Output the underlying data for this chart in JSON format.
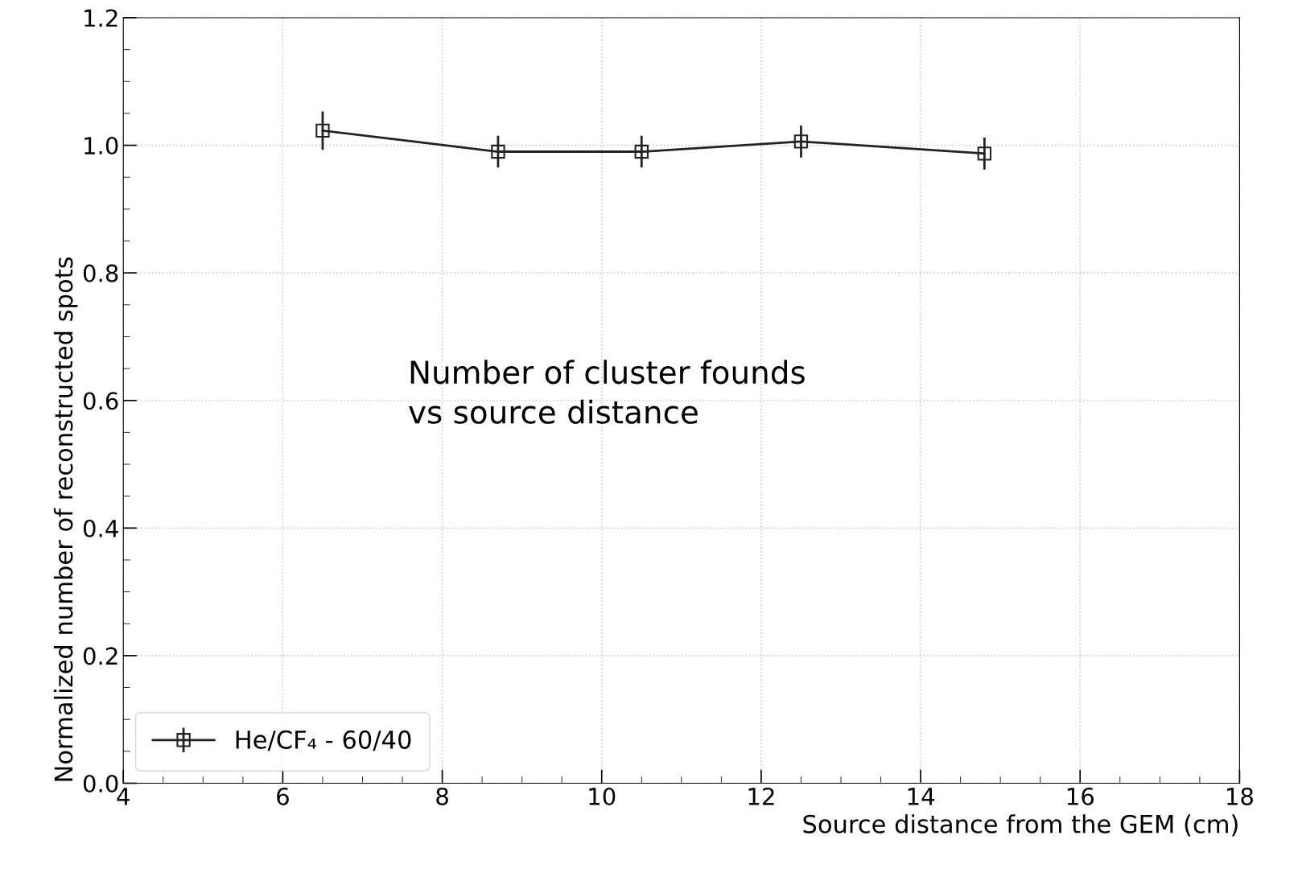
{
  "chart_data": {
    "type": "line",
    "xlabel": "Source distance from the GEM (cm)",
    "ylabel": "Normalized number of reconstructed spots",
    "x": [
      6.5,
      8.7,
      10.5,
      12.5,
      14.8
    ],
    "series": [
      {
        "name": "He/CF₄ - 60/40",
        "color": "#222222",
        "values": [
          1.023,
          0.99,
          0.99,
          1.006,
          0.987
        ],
        "errors": [
          0.03,
          0.025,
          0.025,
          0.025,
          0.025
        ]
      }
    ],
    "xlim": [
      4,
      18
    ],
    "xticks": [
      4,
      6,
      8,
      10,
      12,
      14,
      16,
      18
    ],
    "ylim": [
      0.0,
      1.2
    ],
    "yticks": [
      {
        "value": 0.0,
        "label": "0.0"
      },
      {
        "value": 0.2,
        "label": "0.2"
      },
      {
        "value": 0.4,
        "label": "0.4"
      },
      {
        "value": 0.6,
        "label": "0.6"
      },
      {
        "value": 0.8,
        "label": "0.8"
      },
      {
        "value": 1.0,
        "label": "1.0"
      },
      {
        "value": 1.2,
        "label": "1.2"
      }
    ],
    "annotations": [
      "Number of cluster founds\nvs source distance"
    ],
    "grid": true,
    "legend": "bottom left",
    "marker": "square",
    "line_style": "solid"
  }
}
